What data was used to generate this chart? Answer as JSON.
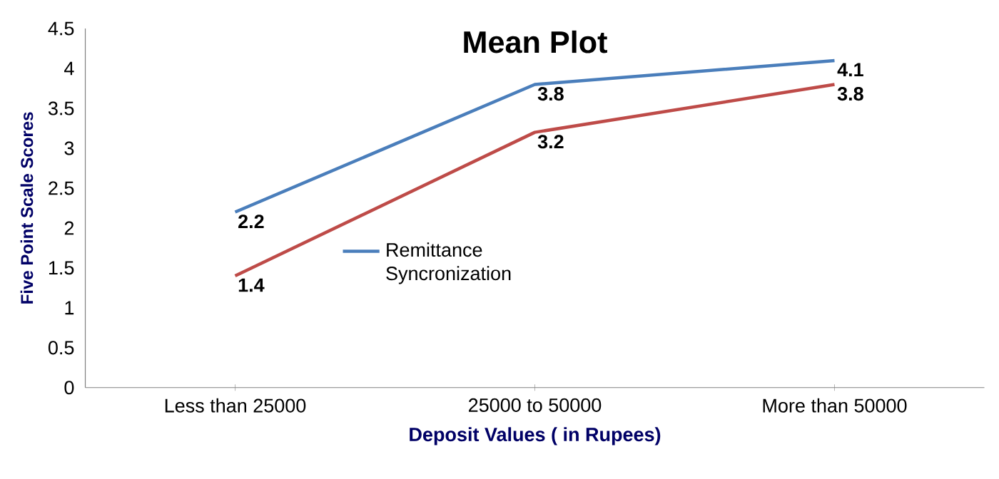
{
  "chart_data": {
    "type": "line",
    "title": "Mean Plot",
    "xlabel": "Deposit Values ( in Rupees)",
    "ylabel": "Five Point Scale Scores",
    "categories": [
      "Less than 25000",
      "25000 to 50000",
      "More than 50000"
    ],
    "series": [
      {
        "name": "Remittance Syncronization",
        "color": "#4a7ebb",
        "values": [
          2.2,
          3.8,
          4.1
        ]
      },
      {
        "color": "#be4b48",
        "values": [
          1.4,
          3.2,
          3.8
        ]
      }
    ],
    "ylim": [
      0,
      4.5
    ],
    "yticks": [
      0,
      0.5,
      1,
      1.5,
      2,
      2.5,
      3,
      3.5,
      4,
      4.5
    ],
    "data_labels": true,
    "legend": "center",
    "grid": false,
    "marker": "none"
  }
}
